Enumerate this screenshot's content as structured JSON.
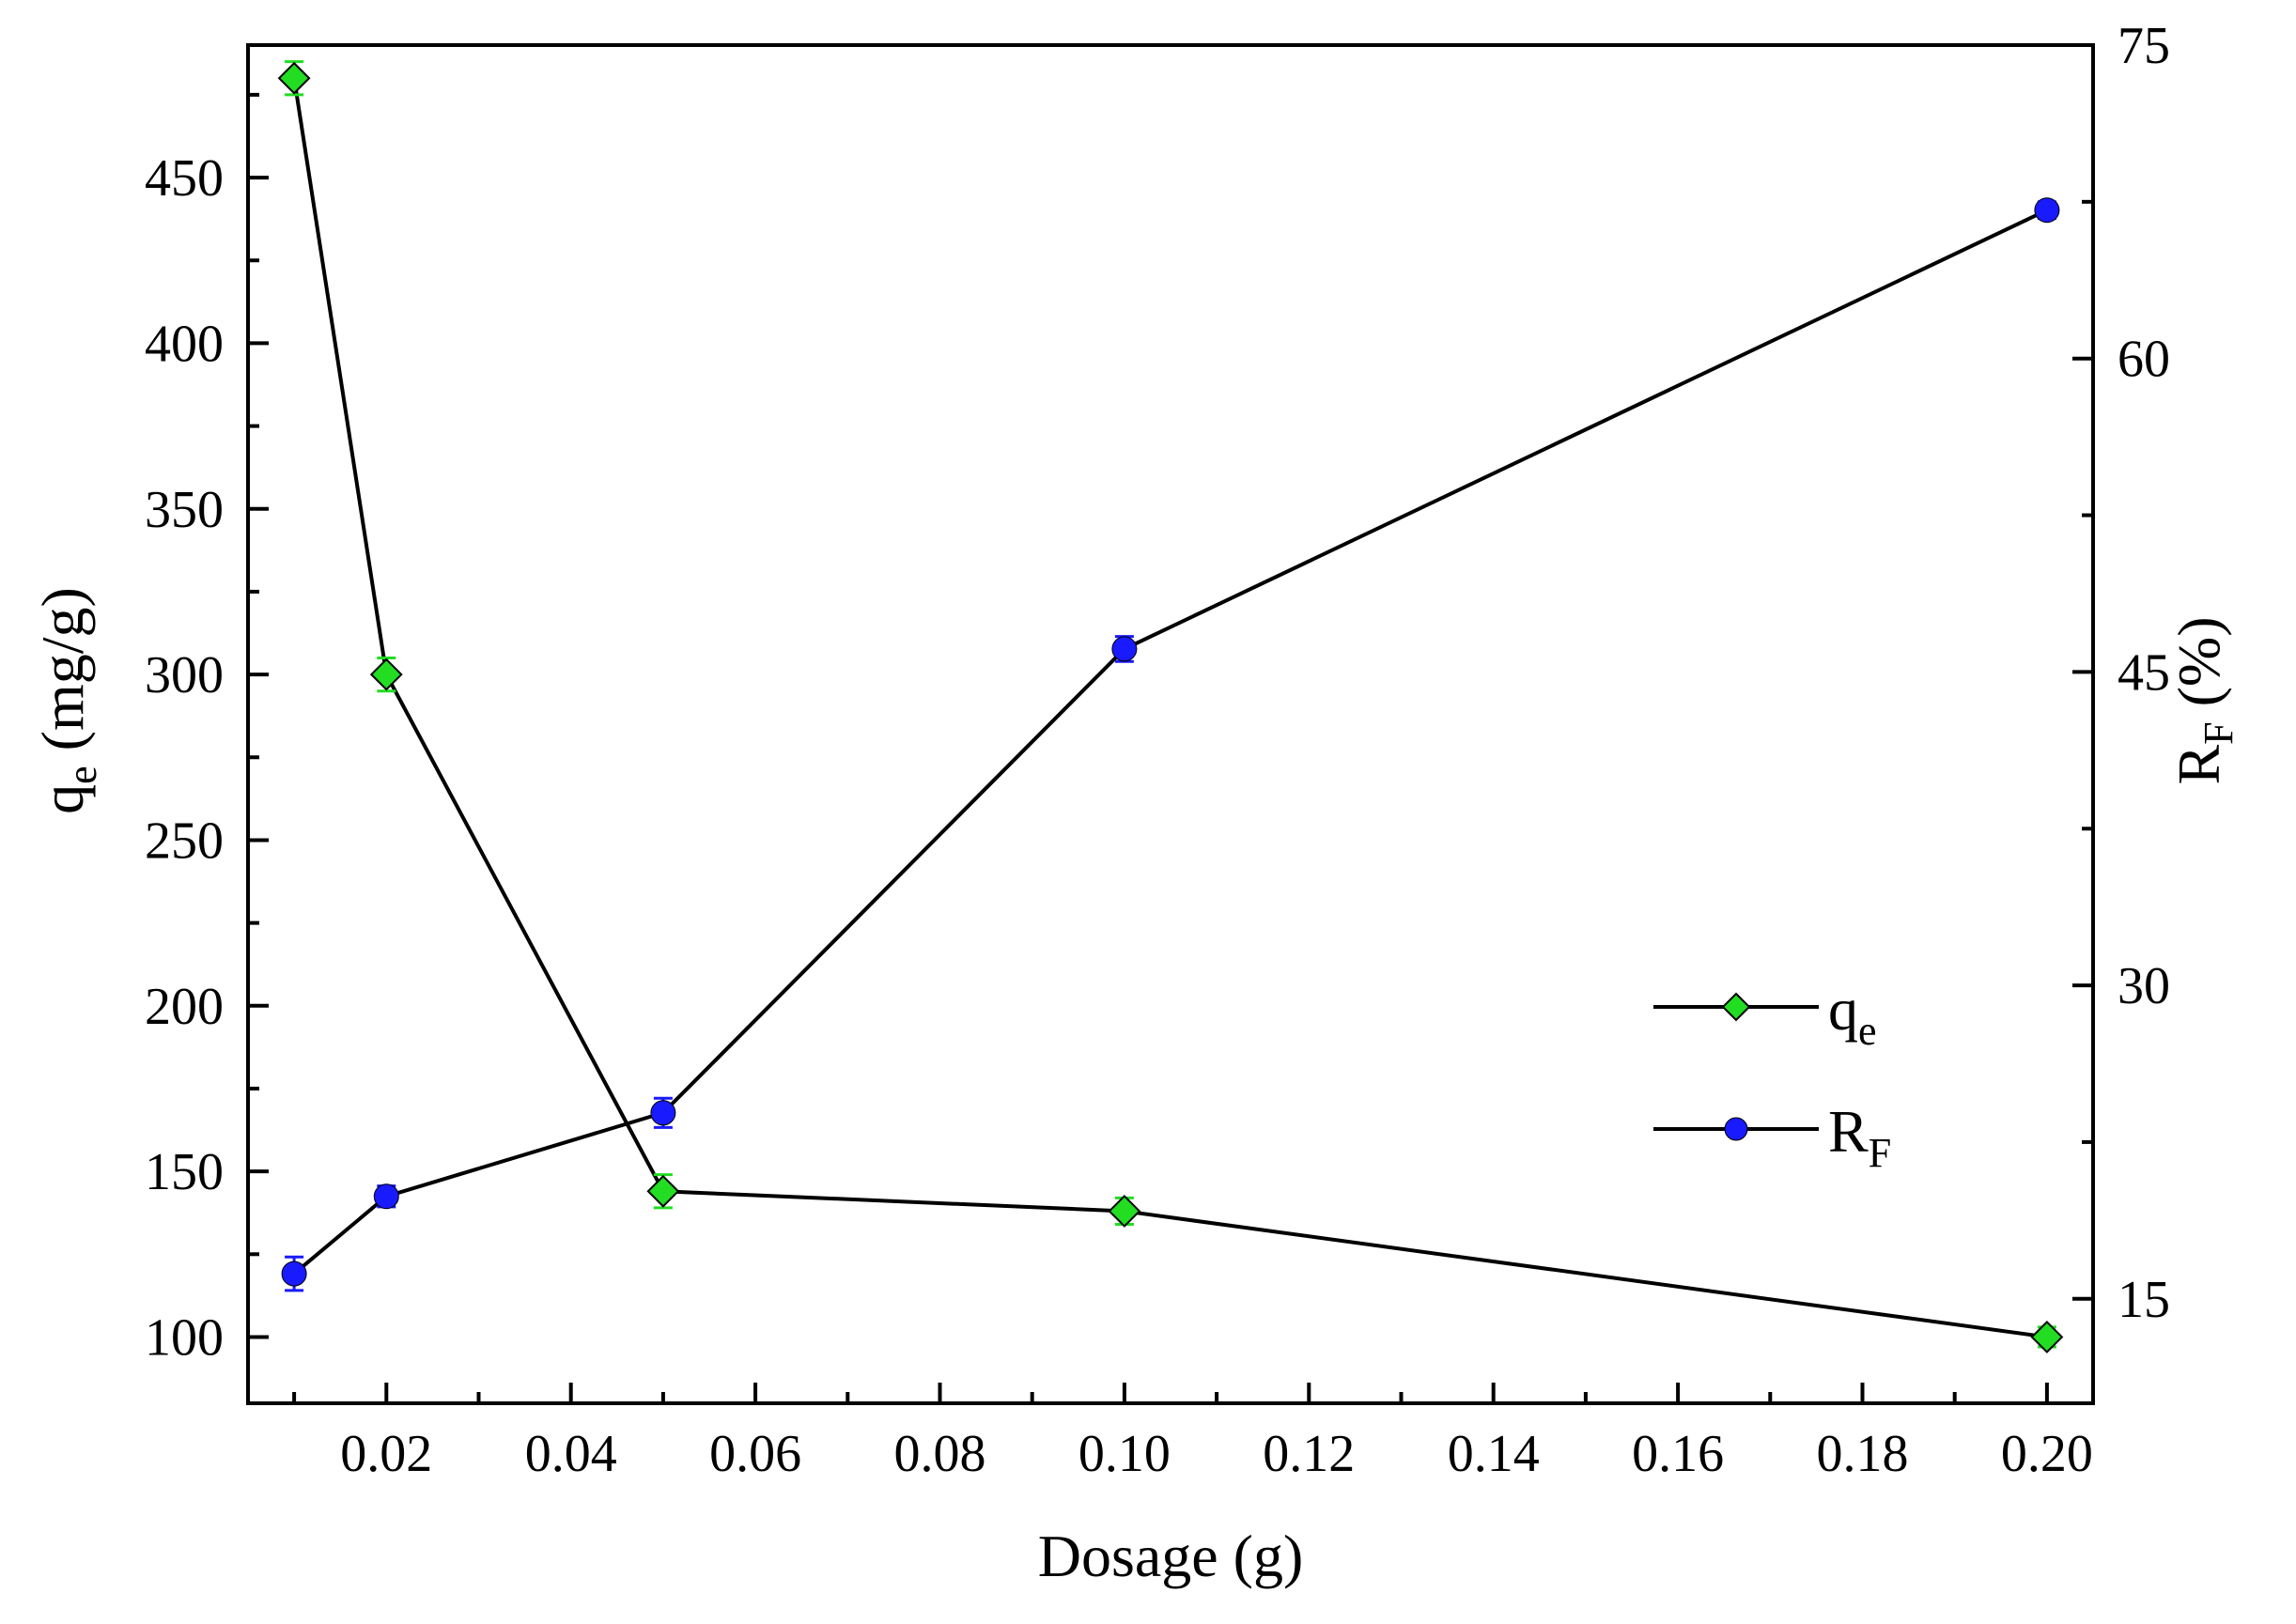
{
  "chart_data": {
    "type": "line",
    "xlabel": "Dosage (g)",
    "ylabel_left": {
      "main": "q",
      "sub": "e",
      "rest": " (mg/g)"
    },
    "ylabel_right": {
      "main": "R",
      "sub": "F",
      "rest": " (%)"
    },
    "xlim": [
      0.005,
      0.205
    ],
    "ylim_left": [
      80,
      490
    ],
    "ylim_right": [
      10,
      75
    ],
    "x_ticks": [
      0.02,
      0.04,
      0.06,
      0.08,
      0.1,
      0.12,
      0.14,
      0.16,
      0.18,
      0.2
    ],
    "x_tick_labels": [
      "0.02",
      "0.04",
      "0.06",
      "0.08",
      "0.10",
      "0.12",
      "0.14",
      "0.16",
      "0.18",
      "0.20"
    ],
    "y_left_ticks": [
      100,
      150,
      200,
      250,
      300,
      350,
      400,
      450
    ],
    "y_left_tick_labels": [
      "100",
      "150",
      "200",
      "250",
      "300",
      "350",
      "400",
      "450"
    ],
    "y_right_ticks": [
      15,
      30,
      45,
      60,
      75
    ],
    "y_right_tick_labels": [
      "15",
      "30",
      "45",
      "60",
      "75"
    ],
    "grid": false,
    "legend_position": "right-middle",
    "series": [
      {
        "name": {
          "main": "q",
          "sub": "e"
        },
        "axis": "left",
        "marker": "diamond",
        "color": "#22dd22",
        "x": [
          0.01,
          0.02,
          0.05,
          0.1,
          0.2
        ],
        "y": [
          480,
          300,
          144,
          138,
          100
        ],
        "err": [
          5,
          5,
          5,
          4,
          3
        ]
      },
      {
        "name": {
          "main": "R",
          "sub": "F"
        },
        "axis": "right",
        "marker": "circle",
        "color": "#1a1aff",
        "x": [
          0.01,
          0.02,
          0.05,
          0.1,
          0.2
        ],
        "y": [
          16.2,
          19.9,
          23.9,
          46.1,
          67.1
        ],
        "err": [
          0.8,
          0.5,
          0.7,
          0.6,
          0.4
        ]
      }
    ]
  }
}
